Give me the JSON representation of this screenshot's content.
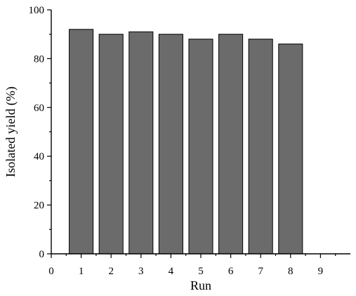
{
  "chart_data": {
    "type": "bar",
    "xlabel": "Run",
    "ylabel": "Isolated yield (%)",
    "categories": [
      "1",
      "2",
      "3",
      "4",
      "5",
      "6",
      "7",
      "8",
      "9"
    ],
    "values": [
      92,
      90,
      91,
      90,
      88,
      90,
      88,
      86,
      0
    ],
    "x_ticks": [
      "0",
      "1",
      "2",
      "3",
      "4",
      "5",
      "6",
      "7",
      "8",
      "9"
    ],
    "y_ticks": [
      0,
      20,
      40,
      60,
      80,
      100
    ],
    "ylim": [
      0,
      100
    ],
    "xlim": [
      0,
      10
    ],
    "bar_color": "#6b6b6b",
    "grid": false,
    "legend": "none"
  }
}
